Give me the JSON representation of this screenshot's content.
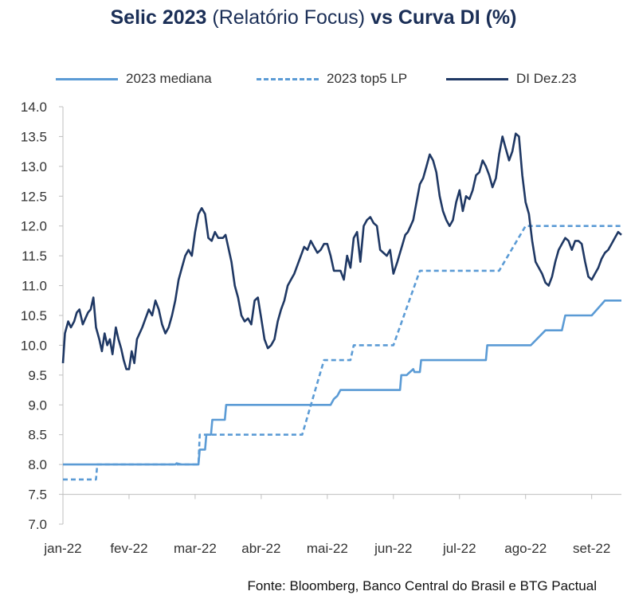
{
  "title": {
    "part1": "Selic 2023",
    "part2": "(Relatório Focus)",
    "part3": "vs",
    "part4": "Curva DI (%)"
  },
  "source": "Fonte: Bloomberg, Banco Central do Brasil e BTG Pactual",
  "chart_data": {
    "type": "line",
    "ylim": [
      7.0,
      14.0
    ],
    "yticks": [
      "14.0",
      "13.5",
      "13.0",
      "12.5",
      "12.0",
      "11.5",
      "11.0",
      "10.5",
      "10.0",
      "9.5",
      "9.0",
      "8.5",
      "8.0",
      "7.5",
      "7.0"
    ],
    "xticks": [
      "jan-22",
      "fev-22",
      "mar-22",
      "abr-22",
      "mai-22",
      "jun-22",
      "jul-22",
      "ago-22",
      "set-22"
    ],
    "xlim_month": [
      0,
      8.45
    ],
    "legend_position": "top",
    "grid": false,
    "series": [
      {
        "name": "2023 mediana",
        "color": "#5b9bd5",
        "style": "solid",
        "x": [
          0,
          1.7,
          1.72,
          1.8,
          1.95,
          2.05,
          2.07,
          2.15,
          2.17,
          2.24,
          2.26,
          2.3,
          2.34,
          2.36,
          2.45,
          2.47,
          2.55,
          2.6,
          2.62,
          2.95,
          3.05,
          3.08,
          3.15,
          3.5,
          3.6,
          3.62,
          3.9,
          4.05,
          4.1,
          4.15,
          4.2,
          4.22,
          4.25,
          4.3,
          4.35,
          4.4,
          4.5,
          4.55,
          4.6,
          4.65,
          5.0,
          5.1,
          5.12,
          5.2,
          5.22,
          5.3,
          5.32,
          5.4,
          5.42,
          5.5,
          5.52,
          5.6,
          5.62,
          5.9,
          5.95,
          5.97,
          6.2,
          6.25,
          6.3,
          6.4,
          6.42,
          6.5,
          6.52,
          6.9,
          7.05,
          7.08,
          7.3,
          7.55,
          7.6,
          7.62,
          8.0,
          8.2,
          8.45
        ],
        "y": [
          8.0,
          8.0,
          8.02,
          8.0,
          8.0,
          8.0,
          8.25,
          8.25,
          8.5,
          8.5,
          8.75,
          8.75,
          8.75,
          8.75,
          8.75,
          9.0,
          9.0,
          9.0,
          9.0,
          9.0,
          9.0,
          9.0,
          9.0,
          9.0,
          9.0,
          9.0,
          9.0,
          9.0,
          9.1,
          9.15,
          9.25,
          9.25,
          9.25,
          9.25,
          9.25,
          9.25,
          9.25,
          9.25,
          9.25,
          9.25,
          9.25,
          9.25,
          9.5,
          9.5,
          9.52,
          9.6,
          9.55,
          9.55,
          9.75,
          9.75,
          9.75,
          9.75,
          9.75,
          9.75,
          9.75,
          9.75,
          9.75,
          9.75,
          9.75,
          9.75,
          10.0,
          10.0,
          10.0,
          10.0,
          10.0,
          10.0,
          10.25,
          10.25,
          10.5,
          10.5,
          10.5,
          10.75,
          10.75
        ]
      },
      {
        "name": "2023 top5 LP",
        "color": "#5b9bd5",
        "style": "dashed",
        "x": [
          0,
          0.25,
          0.27,
          0.35,
          0.45,
          0.5,
          0.52,
          0.7,
          0.8,
          0.9,
          0.92,
          1.1,
          1.12,
          1.15,
          1.17,
          1.6,
          2.0,
          2.05,
          2.07,
          2.12,
          2.15,
          2.2,
          2.25,
          2.3,
          2.32,
          2.4,
          2.5,
          2.55,
          2.57,
          2.65,
          3.0,
          3.05,
          3.1,
          3.12,
          3.2,
          3.25,
          3.27,
          3.4,
          3.5,
          3.6,
          3.62,
          3.95,
          4.0,
          4.05,
          4.1,
          4.12,
          4.15,
          4.2,
          4.3,
          4.35,
          4.4,
          4.45,
          4.5,
          4.6,
          4.65,
          5.0,
          5.4,
          5.5,
          5.6,
          5.7,
          5.8,
          6.2,
          6.3,
          6.4,
          6.5,
          6.6,
          7.0,
          7.1,
          7.2,
          7.3,
          7.4,
          7.5,
          7.6,
          7.7,
          7.8,
          8.0,
          8.45
        ],
        "y": [
          7.75,
          7.75,
          7.75,
          7.75,
          7.75,
          7.75,
          8.0,
          8.0,
          8.0,
          8.0,
          8.0,
          8.0,
          8.0,
          8.0,
          8.0,
          8.0,
          8.0,
          8.0,
          8.5,
          8.5,
          8.5,
          8.5,
          8.5,
          8.5,
          8.5,
          8.5,
          8.5,
          8.5,
          8.5,
          8.5,
          8.5,
          8.5,
          8.5,
          8.5,
          8.5,
          8.5,
          8.5,
          8.5,
          8.5,
          8.5,
          8.5,
          9.75,
          9.75,
          9.75,
          9.75,
          9.75,
          9.75,
          9.75,
          9.75,
          9.75,
          10.0,
          10.0,
          10.0,
          10.0,
          10.0,
          10.0,
          11.25,
          11.25,
          11.25,
          11.25,
          11.25,
          11.25,
          11.25,
          11.25,
          11.25,
          11.25,
          12.0,
          12.0,
          12.0,
          12.0,
          12.0,
          12.0,
          12.0,
          12.0,
          12.0,
          12.0,
          12.0
        ]
      },
      {
        "name": "DI Dez.23",
        "color": "#1f3864",
        "style": "solid",
        "x": [
          0,
          0.03,
          0.08,
          0.12,
          0.17,
          0.21,
          0.25,
          0.3,
          0.34,
          0.38,
          0.42,
          0.46,
          0.5,
          0.55,
          0.59,
          0.63,
          0.67,
          0.71,
          0.75,
          0.8,
          0.84,
          0.88,
          0.92,
          0.96,
          1.0,
          1.04,
          1.08,
          1.12,
          1.16,
          1.2,
          1.25,
          1.3,
          1.35,
          1.4,
          1.45,
          1.5,
          1.55,
          1.6,
          1.65,
          1.7,
          1.75,
          1.8,
          1.85,
          1.9,
          1.95,
          2.0,
          2.05,
          2.1,
          2.15,
          2.2,
          2.25,
          2.3,
          2.35,
          2.38,
          2.42,
          2.46,
          2.5,
          2.55,
          2.6,
          2.65,
          2.7,
          2.75,
          2.8,
          2.85,
          2.9,
          2.95,
          3.0,
          3.05,
          3.1,
          3.15,
          3.2,
          3.25,
          3.3,
          3.35,
          3.4,
          3.45,
          3.5,
          3.55,
          3.6,
          3.65,
          3.7,
          3.75,
          3.8,
          3.85,
          3.9,
          3.95,
          4.0,
          4.05,
          4.1,
          4.15,
          4.2,
          4.25,
          4.3,
          4.35,
          4.4,
          4.45,
          4.5,
          4.55,
          4.6,
          4.65,
          4.7,
          4.75,
          4.8,
          4.85,
          4.9,
          4.95,
          5.0,
          5.03,
          5.06,
          5.1,
          5.14,
          5.18,
          5.22,
          5.26,
          5.3,
          5.35,
          5.4,
          5.45,
          5.5,
          5.55,
          5.6,
          5.65,
          5.7,
          5.75,
          5.8,
          5.85,
          5.9,
          5.95,
          6.0,
          6.05,
          6.1,
          6.15,
          6.2,
          6.25,
          6.3,
          6.35,
          6.4,
          6.45,
          6.5,
          6.55,
          6.6,
          6.65,
          6.7,
          6.75,
          6.8,
          6.85,
          6.9,
          6.95,
          7.0,
          7.05,
          7.1,
          7.15,
          7.2,
          7.25,
          7.3,
          7.35,
          7.4,
          7.45,
          7.5,
          7.55,
          7.6,
          7.65,
          7.7,
          7.75,
          7.8,
          7.85,
          7.9,
          7.95,
          8.0,
          8.05,
          8.1,
          8.15,
          8.2,
          8.25,
          8.3,
          8.35,
          8.4,
          8.45
        ],
        "y": [
          9.7,
          10.2,
          10.4,
          10.3,
          10.4,
          10.55,
          10.6,
          10.35,
          10.45,
          10.55,
          10.6,
          10.8,
          10.3,
          10.1,
          9.9,
          10.2,
          10.0,
          10.1,
          9.85,
          10.3,
          10.1,
          9.95,
          9.75,
          9.6,
          9.6,
          9.9,
          9.7,
          10.1,
          10.2,
          10.3,
          10.45,
          10.6,
          10.5,
          10.75,
          10.6,
          10.35,
          10.2,
          10.3,
          10.5,
          10.75,
          11.1,
          11.3,
          11.5,
          11.6,
          11.5,
          11.9,
          12.2,
          12.3,
          12.2,
          11.8,
          11.75,
          11.9,
          11.8,
          11.8,
          11.8,
          11.85,
          11.65,
          11.4,
          11.0,
          10.8,
          10.5,
          10.4,
          10.45,
          10.35,
          10.75,
          10.8,
          10.45,
          10.1,
          9.95,
          10.0,
          10.1,
          10.4,
          10.6,
          10.75,
          11.0,
          11.1,
          11.2,
          11.35,
          11.5,
          11.65,
          11.6,
          11.75,
          11.65,
          11.55,
          11.6,
          11.7,
          11.7,
          11.5,
          11.25,
          11.25,
          11.25,
          11.1,
          11.5,
          11.3,
          11.8,
          11.9,
          11.4,
          12.0,
          12.1,
          12.15,
          12.05,
          12.0,
          11.6,
          11.55,
          11.5,
          11.6,
          11.2,
          11.3,
          11.4,
          11.55,
          11.7,
          11.85,
          11.9,
          12.0,
          12.1,
          12.4,
          12.7,
          12.8,
          13.0,
          13.2,
          13.1,
          12.9,
          12.5,
          12.25,
          12.1,
          12.0,
          12.1,
          12.4,
          12.6,
          12.25,
          12.5,
          12.45,
          12.6,
          12.85,
          12.9,
          13.1,
          13.0,
          12.85,
          12.65,
          12.8,
          13.2,
          13.5,
          13.3,
          13.1,
          13.25,
          13.55,
          13.5,
          12.85,
          12.4,
          12.2,
          11.75,
          11.4,
          11.3,
          11.2,
          11.05,
          11.0,
          11.15,
          11.4,
          11.6,
          11.7,
          11.8,
          11.75,
          11.6,
          11.75,
          11.75,
          11.7,
          11.4,
          11.15,
          11.1,
          11.2,
          11.3,
          11.45,
          11.55,
          11.6,
          11.7,
          11.8,
          11.9,
          11.85
        ]
      }
    ]
  }
}
